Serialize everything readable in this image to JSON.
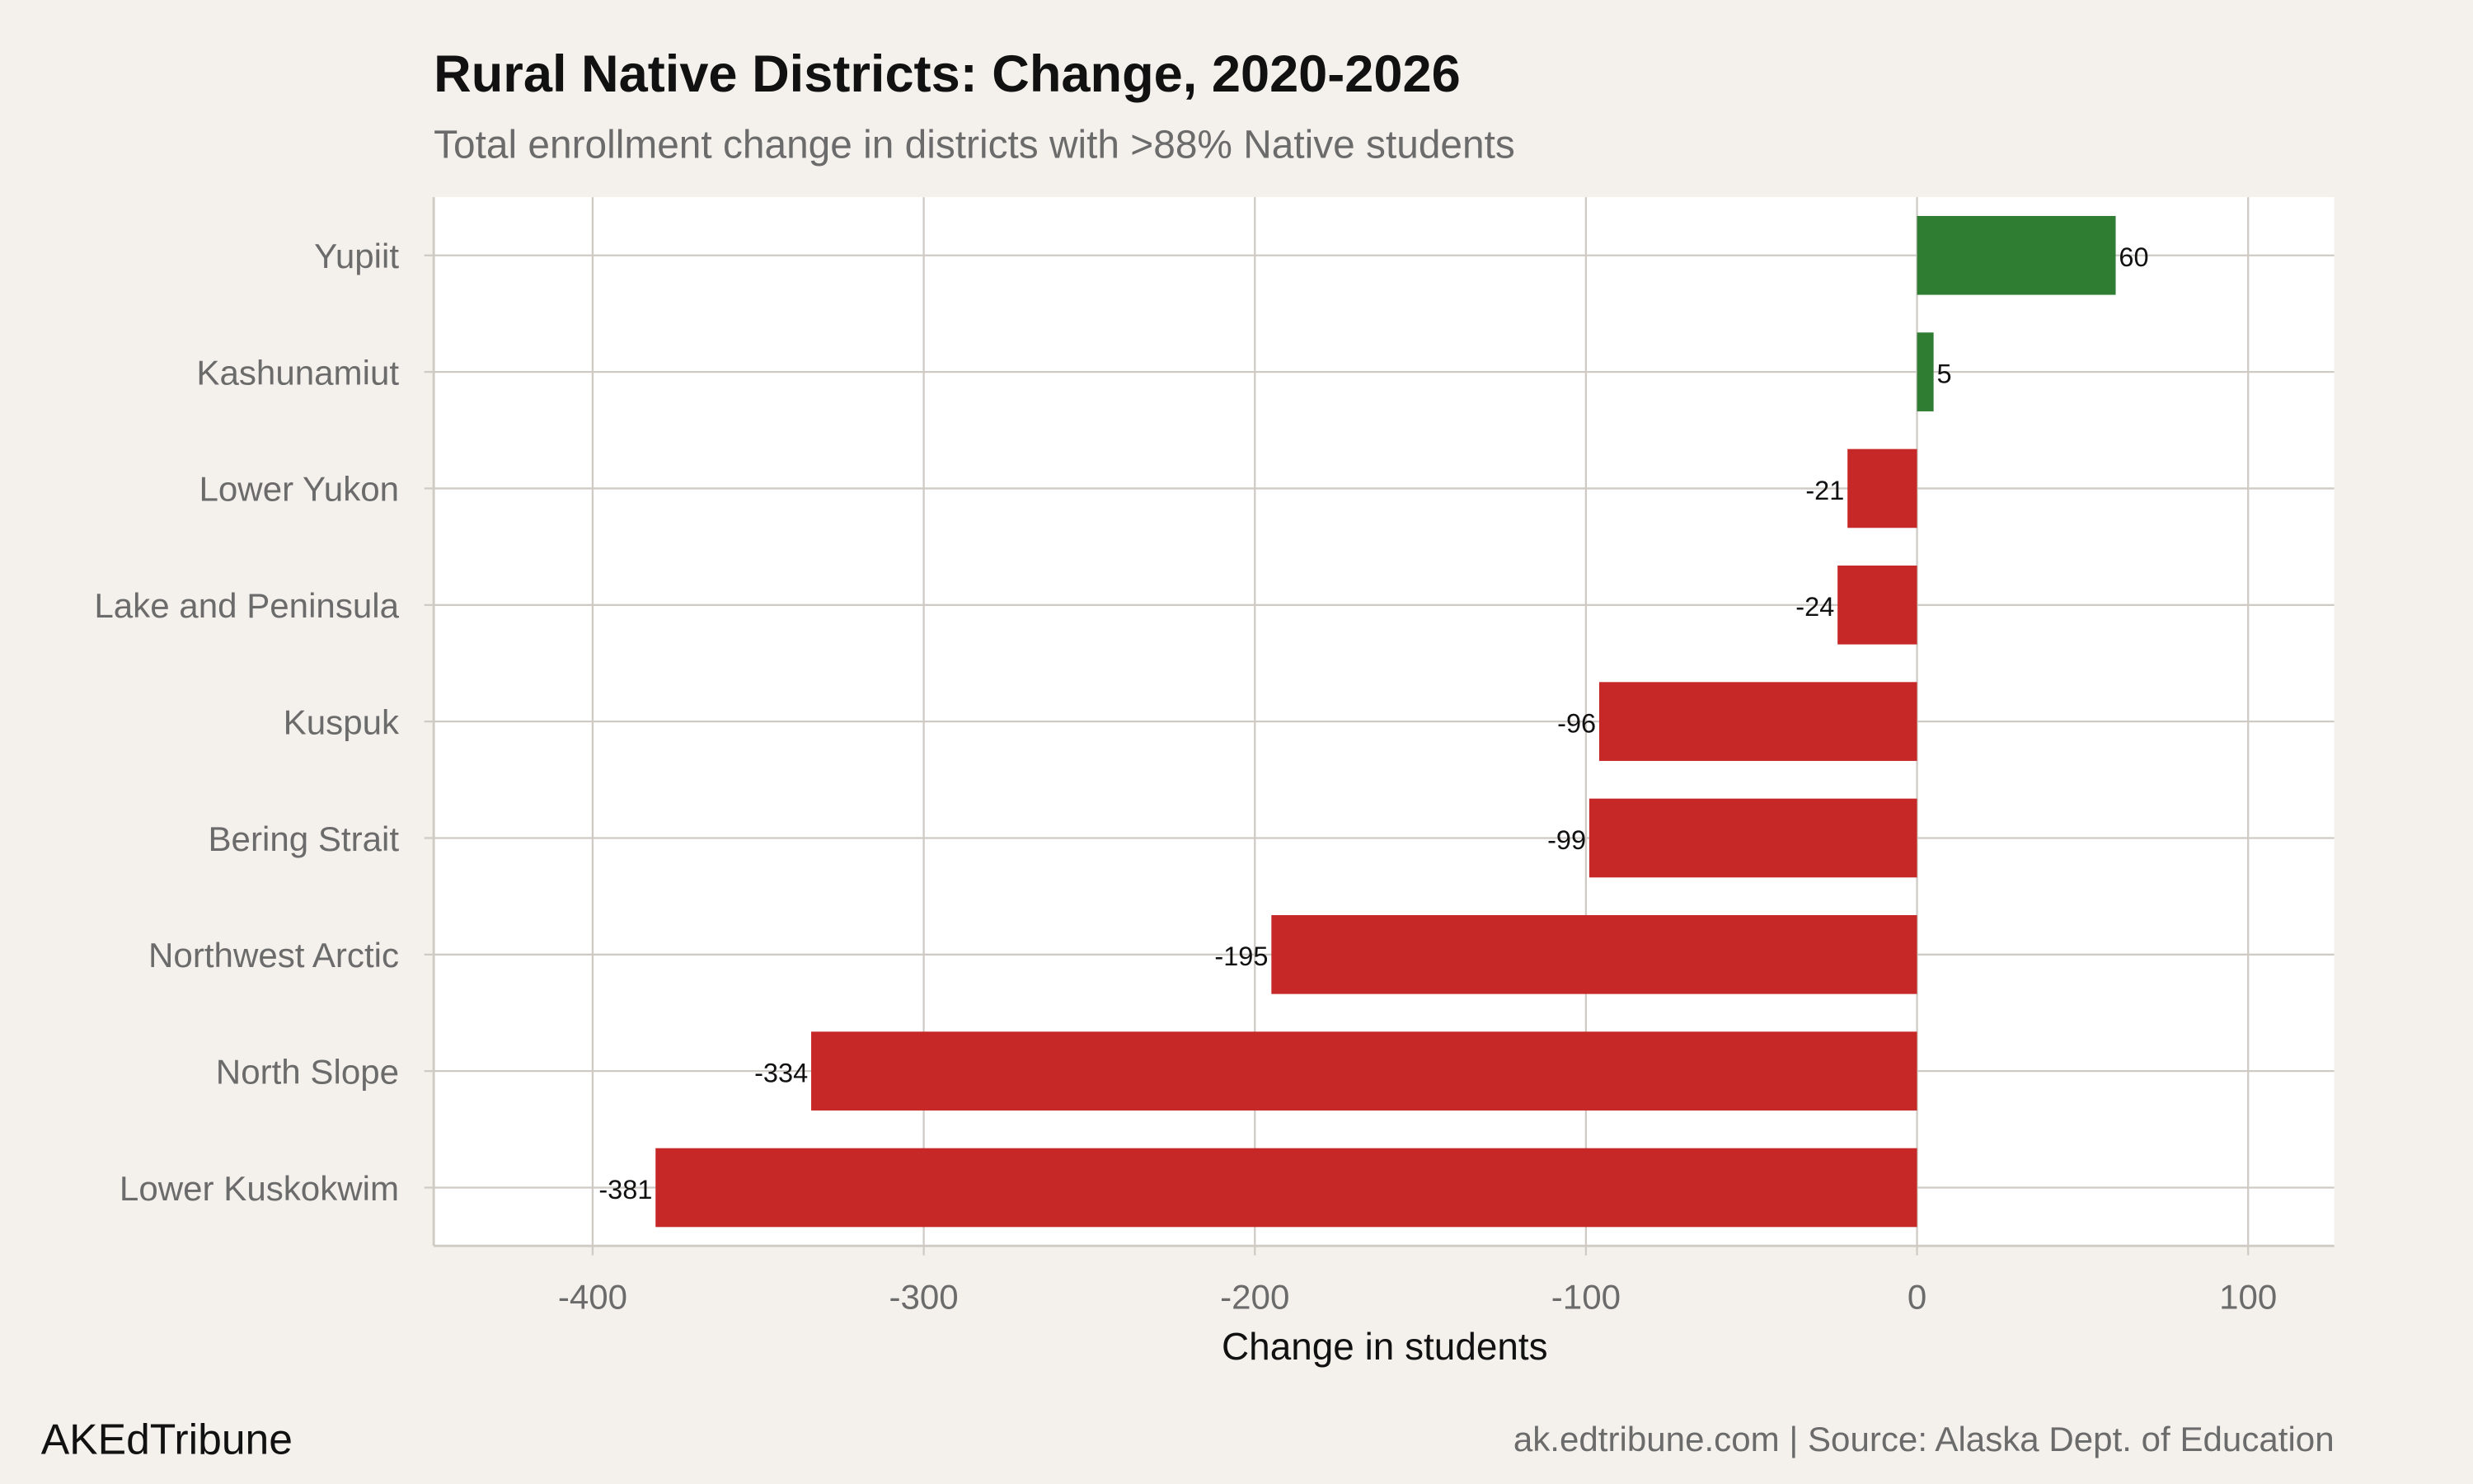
{
  "chart_data": {
    "type": "bar",
    "orientation": "horizontal",
    "title": "Rural Native Districts: Change, 2020-2026",
    "subtitle": "Total enrollment change in districts with >88% Native students",
    "xlabel": "Change in students",
    "ylabel": "",
    "categories": [
      "Yupiit",
      "Kashunamiut",
      "Lower Yukon",
      "Lake and Peninsula",
      "Kuspuk",
      "Bering Strait",
      "Northwest Arctic",
      "North Slope",
      "Lower Kuskokwim"
    ],
    "values": [
      60,
      5,
      -21,
      -24,
      -96,
      -99,
      -195,
      -334,
      -381
    ],
    "labels": [
      "60",
      "5",
      "-21",
      "-24",
      "-96",
      "-99",
      "-195",
      "-334",
      "-381"
    ],
    "xlim": [
      -448,
      126
    ],
    "xticks": [
      -400,
      -300,
      -200,
      -100,
      0,
      100
    ],
    "xtick_labels": [
      "-400",
      "-300",
      "-200",
      "-100",
      "0",
      "100"
    ],
    "grid": true,
    "colors": {
      "positive": "#2e7d32",
      "negative": "#c62828",
      "panel": "#ffffff",
      "background": "#f4f1ec",
      "grid": "#cfcbc4"
    }
  },
  "footer": {
    "brand": "AKEdTribune",
    "source": "ak.edtribune.com | Source: Alaska Dept. of Education"
  }
}
